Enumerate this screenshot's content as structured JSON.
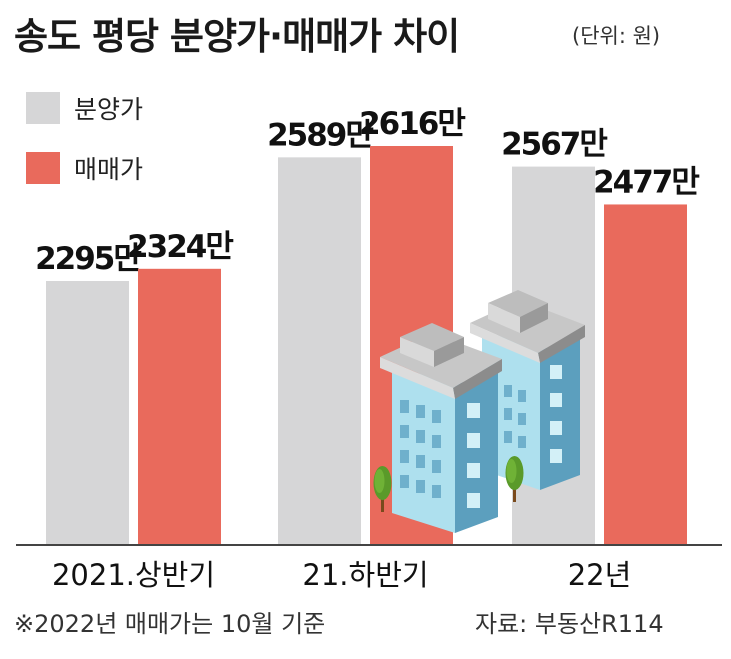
{
  "header": {
    "title": "송도 평당 분양가·매매가 차이",
    "unit": "(단위: 원)"
  },
  "legend": [
    {
      "label": "분양가",
      "color": "#d6d6d7"
    },
    {
      "label": "매매가",
      "color": "#e96a5c"
    }
  ],
  "chart_data": {
    "type": "bar",
    "categories": [
      "2021.상반기",
      "21.하반기",
      "22년"
    ],
    "series": [
      {
        "name": "분양가",
        "values": [
          2295,
          2589,
          2567
        ],
        "labels": [
          "2295만",
          "2589만",
          "2567만"
        ],
        "color": "#d6d6d7"
      },
      {
        "name": "매매가",
        "values": [
          2324,
          2616,
          2477
        ],
        "labels": [
          "2324만",
          "2616만",
          "2477만"
        ],
        "color": "#e96a5c"
      }
    ],
    "title": "송도 평당 분양가·매매가 차이",
    "xlabel": "",
    "ylabel": "",
    "unit": "(단위: 원)",
    "legend_position": "top-left",
    "grid": false
  },
  "footer": {
    "footnote": "※2022년 매매가는 10월 기준",
    "source": "자료: 부동산R114"
  },
  "illustration": {
    "icon": "apartment-buildings-icon"
  }
}
